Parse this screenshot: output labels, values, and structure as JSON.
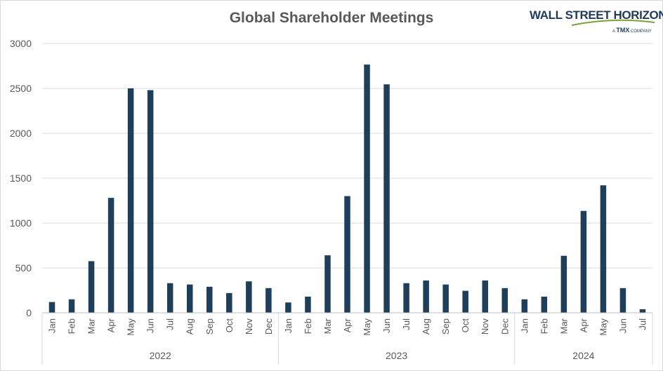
{
  "chart_data": {
    "type": "bar",
    "title": "Global Shareholder Meetings",
    "xlabel": "",
    "ylabel": "",
    "ylim": [
      0,
      3000
    ],
    "yticks": [
      0,
      500,
      1000,
      1500,
      2000,
      2500,
      3000
    ],
    "grid": true,
    "legend": "none",
    "color": "#1f3e5a",
    "groups": [
      {
        "year": "2022",
        "months": [
          "Jan",
          "Feb",
          "Mar",
          "Apr",
          "May",
          "Jun",
          "Jul",
          "Aug",
          "Sep",
          "Oct",
          "Nov",
          "Dec"
        ],
        "values": [
          120,
          150,
          575,
          1280,
          2500,
          2480,
          330,
          315,
          290,
          220,
          350,
          275
        ]
      },
      {
        "year": "2023",
        "months": [
          "Jan",
          "Feb",
          "Mar",
          "Apr",
          "May",
          "Jun",
          "Jul",
          "Aug",
          "Sep",
          "Oct",
          "Nov",
          "Dec"
        ],
        "values": [
          115,
          180,
          640,
          1300,
          2765,
          2545,
          330,
          360,
          315,
          245,
          360,
          275
        ]
      },
      {
        "year": "2024",
        "months": [
          "Jan",
          "Feb",
          "Mar",
          "Apr",
          "May",
          "Jun",
          "Jul"
        ],
        "values": [
          150,
          180,
          635,
          1135,
          1420,
          275,
          40
        ]
      }
    ]
  },
  "logo": {
    "name": "WALL STREET HORIZON",
    "tagline_prefix": "A",
    "tagline_brand": "TMX",
    "tagline_suffix": "COMPANY"
  }
}
